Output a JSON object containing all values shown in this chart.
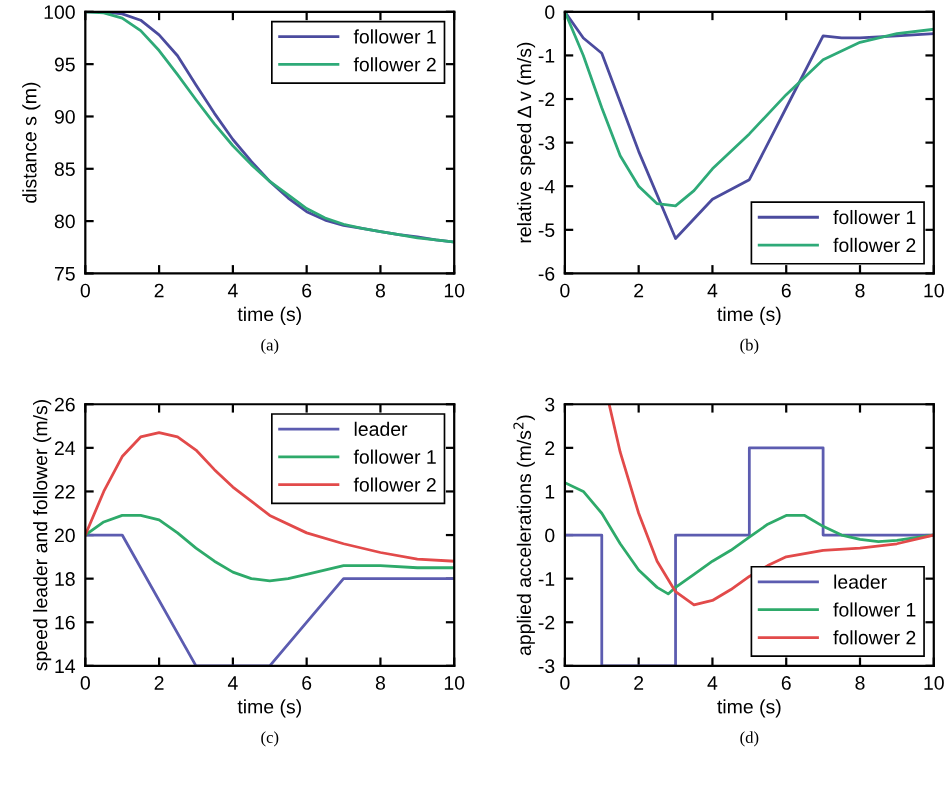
{
  "chart_data": [
    {
      "type": "line",
      "xlabel": "time (s)",
      "ylabel": "distance s (m)",
      "annotations": [
        "(a)"
      ],
      "xlim": [
        0,
        10
      ],
      "xticks": [
        0,
        2,
        4,
        6,
        8,
        10
      ],
      "ylim": [
        75,
        100
      ],
      "yticks": [
        75,
        80,
        85,
        90,
        95,
        100
      ],
      "grid": false,
      "legend": "top right",
      "series": [
        {
          "name": "follower 1",
          "color": "#4b4b9e",
          "x": [
            0,
            0.5,
            1,
            1.5,
            2,
            2.5,
            3,
            3.5,
            4,
            4.5,
            5,
            5.5,
            6,
            6.5,
            7,
            7.5,
            8,
            8.5,
            9,
            9.5,
            10
          ],
          "values": [
            100,
            100,
            99.8,
            99.2,
            97.8,
            95.8,
            93.0,
            90.3,
            87.8,
            85.7,
            83.8,
            82.2,
            80.9,
            80.1,
            79.6,
            79.3,
            79.0,
            78.7,
            78.5,
            78.2,
            78.0
          ]
        },
        {
          "name": "follower 2",
          "color": "#2eaa78",
          "x": [
            0,
            0.5,
            1,
            1.5,
            2,
            2.5,
            3,
            3.5,
            4,
            4.5,
            5,
            5.5,
            6,
            6.5,
            7,
            7.5,
            8,
            8.5,
            9,
            9.5,
            10
          ],
          "values": [
            100,
            99.9,
            99.4,
            98.2,
            96.3,
            94.0,
            91.6,
            89.3,
            87.2,
            85.4,
            83.8,
            82.5,
            81.2,
            80.3,
            79.7,
            79.3,
            79.0,
            78.7,
            78.4,
            78.2,
            78.0
          ]
        }
      ]
    },
    {
      "type": "line",
      "xlabel": "time (s)",
      "ylabel": "relative speed Δ v (m/s)",
      "annotations": [
        "(b)"
      ],
      "xlim": [
        0,
        10
      ],
      "xticks": [
        0,
        2,
        4,
        6,
        8,
        10
      ],
      "ylim": [
        -6,
        0
      ],
      "yticks": [
        -6,
        -5,
        -4,
        -3,
        -2,
        -1,
        0
      ],
      "grid": false,
      "legend": "bottom right",
      "series": [
        {
          "name": "follower 1",
          "color": "#4b4b9e",
          "x": [
            0,
            0.5,
            1,
            2,
            3,
            4,
            5,
            6,
            7,
            7.5,
            8,
            9,
            10
          ],
          "values": [
            0,
            -0.6,
            -0.95,
            -3.2,
            -5.2,
            -4.3,
            -3.85,
            -2.2,
            -0.55,
            -0.6,
            -0.6,
            -0.55,
            -0.5
          ]
        },
        {
          "name": "follower 2",
          "color": "#2eaa78",
          "x": [
            0,
            0.5,
            1,
            1.5,
            2,
            2.5,
            3,
            3.5,
            4,
            5,
            6,
            7,
            8,
            9,
            10
          ],
          "values": [
            0,
            -1.0,
            -2.2,
            -3.3,
            -4.0,
            -4.4,
            -4.45,
            -4.1,
            -3.6,
            -2.8,
            -1.9,
            -1.1,
            -0.7,
            -0.5,
            -0.4
          ]
        }
      ]
    },
    {
      "type": "line",
      "xlabel": "time (s)",
      "ylabel": "speed leader and follower (m/s)",
      "annotations": [
        "(c)"
      ],
      "xlim": [
        0,
        10
      ],
      "xticks": [
        0,
        2,
        4,
        6,
        8,
        10
      ],
      "ylim": [
        14,
        26
      ],
      "yticks": [
        14,
        16,
        18,
        20,
        22,
        24,
        26
      ],
      "grid": false,
      "legend": "top right",
      "series": [
        {
          "name": "leader",
          "color": "#5c5cb0",
          "x": [
            0,
            1,
            3,
            5,
            7,
            10
          ],
          "values": [
            20,
            20,
            14,
            14,
            18,
            18
          ]
        },
        {
          "name": "follower 1",
          "color": "#2eaa6a",
          "x": [
            0,
            0.5,
            1,
            1.5,
            2,
            2.5,
            3,
            3.5,
            4,
            4.5,
            5,
            5.5,
            6,
            7,
            8,
            9,
            10
          ],
          "values": [
            20,
            20.6,
            20.9,
            20.9,
            20.7,
            20.1,
            19.4,
            18.8,
            18.3,
            18.0,
            17.9,
            18.0,
            18.2,
            18.6,
            18.6,
            18.5,
            18.5
          ]
        },
        {
          "name": "follower 2",
          "color": "#e24a4a",
          "x": [
            0,
            0.5,
            1,
            1.5,
            2,
            2.5,
            3,
            3.5,
            4,
            5,
            6,
            7,
            8,
            9,
            10
          ],
          "values": [
            20,
            22.0,
            23.6,
            24.5,
            24.7,
            24.5,
            23.9,
            23.0,
            22.2,
            20.9,
            20.1,
            19.6,
            19.2,
            18.9,
            18.8
          ]
        }
      ]
    },
    {
      "type": "line",
      "xlabel": "time (s)",
      "ylabel": "applied accelerations (m/s$^{2}$)",
      "annotations": [
        "(d)"
      ],
      "xlim": [
        0,
        10
      ],
      "xticks": [
        0,
        2,
        4,
        6,
        8,
        10
      ],
      "ylim": [
        -3,
        3
      ],
      "yticks": [
        -3,
        -2,
        -1,
        0,
        1,
        2,
        3
      ],
      "grid": false,
      "legend": "bottom right",
      "series": [
        {
          "name": "leader",
          "color": "#5c5cb0",
          "x": [
            0,
            1,
            1,
            3,
            3,
            5,
            5,
            7,
            7,
            10
          ],
          "values": [
            0,
            0,
            -3,
            -3,
            0,
            0,
            2,
            2,
            0,
            0
          ]
        },
        {
          "name": "follower 1",
          "color": "#2eaa6a",
          "x": [
            0,
            0.5,
            1,
            1.5,
            2,
            2.5,
            2.8,
            3,
            3.5,
            4,
            4.5,
            5,
            5.5,
            6,
            6.5,
            7,
            7.5,
            8,
            8.5,
            9,
            10
          ],
          "values": [
            1.2,
            1.0,
            0.5,
            -0.2,
            -0.8,
            -1.2,
            -1.35,
            -1.2,
            -0.9,
            -0.6,
            -0.35,
            -0.05,
            0.25,
            0.45,
            0.45,
            0.2,
            0.0,
            -0.1,
            -0.15,
            -0.12,
            0
          ]
        },
        {
          "name": "follower 2",
          "color": "#e24a4a",
          "x": [
            1.2,
            1.5,
            2,
            2.5,
            3,
            3.5,
            4,
            4.5,
            5,
            5.5,
            6,
            7,
            8,
            9,
            10
          ],
          "values": [
            3.0,
            1.9,
            0.5,
            -0.6,
            -1.3,
            -1.6,
            -1.5,
            -1.25,
            -0.95,
            -0.7,
            -0.5,
            -0.35,
            -0.3,
            -0.2,
            0
          ]
        }
      ]
    }
  ]
}
